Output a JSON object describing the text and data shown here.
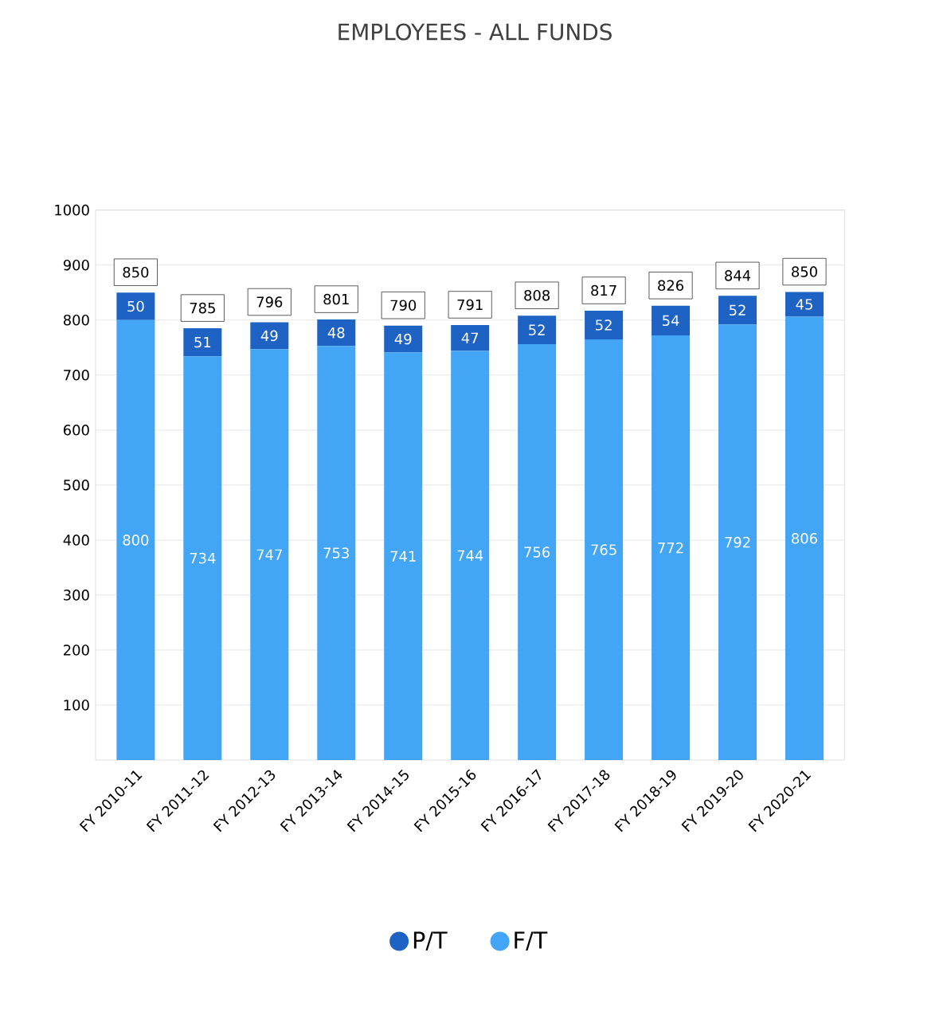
{
  "chart_data": {
    "type": "bar",
    "title": "EMPLOYEES - ALL FUNDS",
    "stacked": true,
    "categories": [
      "FY 2010-11",
      "FY 2011-12",
      "FY 2012-13",
      "FY 2013-14",
      "FY 2014-15",
      "FY 2015-16",
      "FY 2016-17",
      "FY 2017-18",
      "FY 2018-19",
      "FY 2019-20",
      "FY 2020-21"
    ],
    "series": [
      {
        "name": "F/T",
        "color": "#42a5f5",
        "values": [
          800,
          734,
          747,
          753,
          741,
          744,
          756,
          765,
          772,
          792,
          806
        ]
      },
      {
        "name": "P/T",
        "color": "#1e63c4",
        "values": [
          50,
          51,
          49,
          48,
          49,
          47,
          52,
          52,
          54,
          52,
          45
        ]
      }
    ],
    "totals": [
      "850",
      "785",
      "796",
      "801",
      "790",
      "791",
      "808",
      "817",
      "826",
      "844",
      "850"
    ],
    "ylim": [
      0,
      1000
    ],
    "yticks": [
      100,
      200,
      300,
      400,
      500,
      600,
      700,
      800,
      900,
      1000
    ],
    "grid": true,
    "data_labels": true,
    "legend": "bottom"
  }
}
